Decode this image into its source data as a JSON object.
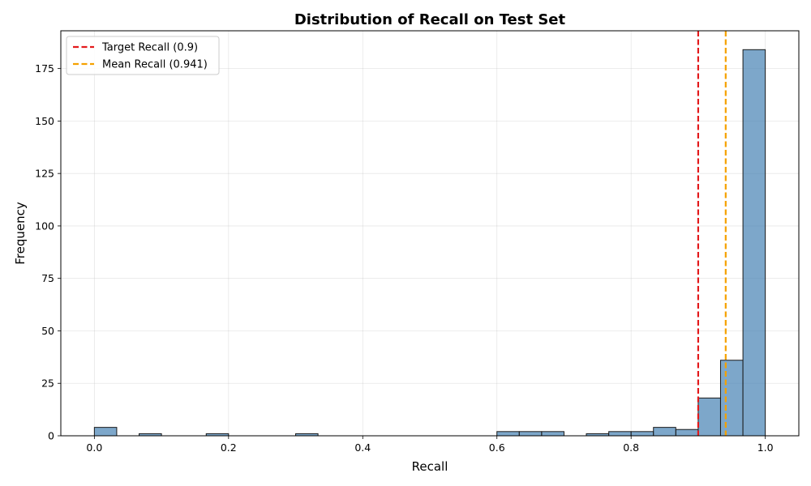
{
  "chart_data": {
    "type": "bar",
    "title": "Distribution of Recall on Test Set",
    "xlabel": "Recall",
    "ylabel": "Frequency",
    "xlim": [
      -0.05,
      1.05
    ],
    "ylim": [
      0,
      193
    ],
    "grid": true,
    "legend_position": "top-left",
    "bar_color": "#4682b4",
    "bar_edge_color": "#1a1a1a",
    "bin_width": 0.0333,
    "bins": [
      {
        "x0": 0.0,
        "count": 4
      },
      {
        "x0": 0.0667,
        "count": 1
      },
      {
        "x0": 0.1667,
        "count": 1
      },
      {
        "x0": 0.3,
        "count": 1
      },
      {
        "x0": 0.6,
        "count": 2
      },
      {
        "x0": 0.6333,
        "count": 2
      },
      {
        "x0": 0.6667,
        "count": 2
      },
      {
        "x0": 0.7333,
        "count": 1
      },
      {
        "x0": 0.7667,
        "count": 2
      },
      {
        "x0": 0.8,
        "count": 2
      },
      {
        "x0": 0.8333,
        "count": 4
      },
      {
        "x0": 0.8667,
        "count": 3
      },
      {
        "x0": 0.9,
        "count": 18
      },
      {
        "x0": 0.9333,
        "count": 36
      },
      {
        "x0": 0.9667,
        "count": 184
      }
    ],
    "x_ticks": [
      {
        "value": 0.0,
        "label": "0.0"
      },
      {
        "value": 0.2,
        "label": "0.2"
      },
      {
        "value": 0.4,
        "label": "0.4"
      },
      {
        "value": 0.6,
        "label": "0.6"
      },
      {
        "value": 0.8,
        "label": "0.8"
      },
      {
        "value": 1.0,
        "label": "1.0"
      }
    ],
    "y_ticks": [
      {
        "value": 0,
        "label": "0"
      },
      {
        "value": 25,
        "label": "25"
      },
      {
        "value": 50,
        "label": "50"
      },
      {
        "value": 75,
        "label": "75"
      },
      {
        "value": 100,
        "label": "100"
      },
      {
        "value": 125,
        "label": "125"
      },
      {
        "value": 150,
        "label": "150"
      },
      {
        "value": 175,
        "label": "175"
      }
    ],
    "reference_lines": [
      {
        "x": 0.9,
        "label": "Target Recall (0.9)",
        "color": "#e31a1c",
        "style": "dashed"
      },
      {
        "x": 0.941,
        "label": "Mean Recall (0.941)",
        "color": "#f5a100",
        "style": "dashed"
      }
    ]
  }
}
